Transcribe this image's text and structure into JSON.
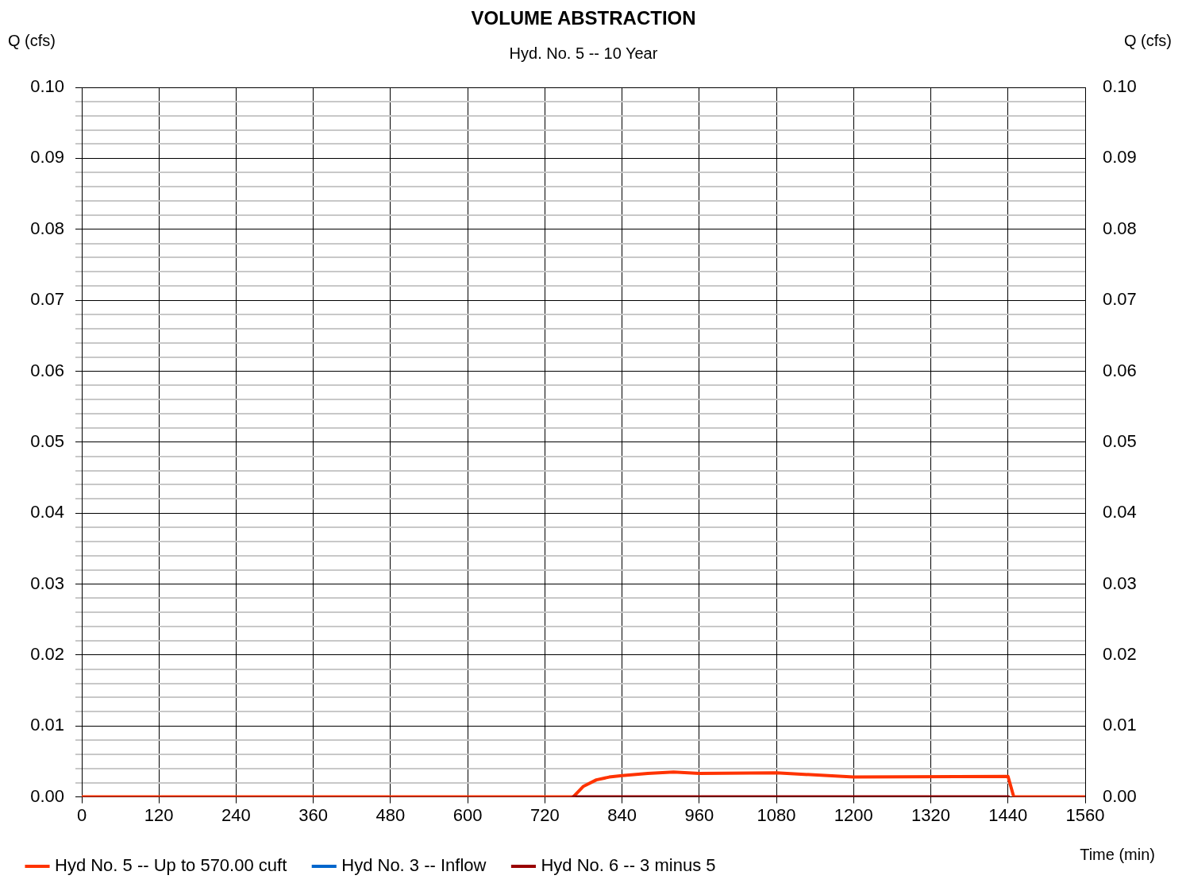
{
  "chart_data": {
    "type": "line",
    "title": "VOLUME ABSTRACTION",
    "subtitle": "Hyd. No. 5 -- 10 Year",
    "xlabel": "Time (min)",
    "ylabel": "Q (cfs)",
    "y2label": "Q (cfs)",
    "xlim": [
      0,
      1560
    ],
    "xticks": [
      0,
      120,
      240,
      360,
      480,
      600,
      720,
      840,
      960,
      1080,
      1200,
      1320,
      1440,
      1560
    ],
    "ylim": [
      0,
      0.1
    ],
    "yticks": [
      {
        "value": 0,
        "label": "0.00"
      },
      {
        "value": 0.002,
        "label": null
      },
      {
        "value": 0.004,
        "label": null
      },
      {
        "value": 0.006,
        "label": null
      },
      {
        "value": 0.008,
        "label": null
      },
      {
        "value": 0.01,
        "label": "0.01"
      },
      {
        "value": 0.012,
        "label": null
      },
      {
        "value": 0.014,
        "label": null
      },
      {
        "value": 0.016,
        "label": null
      },
      {
        "value": 0.018,
        "label": null
      },
      {
        "value": 0.02,
        "label": "0.02"
      },
      {
        "value": 0.022,
        "label": null
      },
      {
        "value": 0.024,
        "label": null
      },
      {
        "value": 0.026,
        "label": null
      },
      {
        "value": 0.028,
        "label": null
      },
      {
        "value": 0.03,
        "label": "0.03"
      },
      {
        "value": 0.032,
        "label": null
      },
      {
        "value": 0.034,
        "label": null
      },
      {
        "value": 0.036,
        "label": null
      },
      {
        "value": 0.038,
        "label": null
      },
      {
        "value": 0.04,
        "label": "0.04"
      },
      {
        "value": 0.042,
        "label": null
      },
      {
        "value": 0.044,
        "label": null
      },
      {
        "value": 0.046,
        "label": null
      },
      {
        "value": 0.048,
        "label": null
      },
      {
        "value": 0.05,
        "label": "0.05"
      },
      {
        "value": 0.052,
        "label": null
      },
      {
        "value": 0.054,
        "label": null
      },
      {
        "value": 0.056,
        "label": null
      },
      {
        "value": 0.058,
        "label": null
      },
      {
        "value": 0.06,
        "label": "0.06"
      },
      {
        "value": 0.062,
        "label": null
      },
      {
        "value": 0.064,
        "label": null
      },
      {
        "value": 0.066,
        "label": null
      },
      {
        "value": 0.068,
        "label": null
      },
      {
        "value": 0.07,
        "label": "0.07"
      },
      {
        "value": 0.072,
        "label": null
      },
      {
        "value": 0.074,
        "label": null
      },
      {
        "value": 0.076,
        "label": null
      },
      {
        "value": 0.078,
        "label": null
      },
      {
        "value": 0.08,
        "label": "0.08"
      },
      {
        "value": 0.082,
        "label": null
      },
      {
        "value": 0.084,
        "label": null
      },
      {
        "value": 0.086,
        "label": null
      },
      {
        "value": 0.088,
        "label": null
      },
      {
        "value": 0.09,
        "label": "0.09"
      },
      {
        "value": 0.092,
        "label": null
      },
      {
        "value": 0.094,
        "label": null
      },
      {
        "value": 0.096,
        "label": null
      },
      {
        "value": 0.098,
        "label": null
      },
      {
        "value": 0.1,
        "label": "0.10"
      }
    ],
    "y2lim": [
      0,
      0.1
    ],
    "y2ticks": [
      {
        "value": 0,
        "label": "0.00"
      },
      {
        "value": 0.01,
        "label": "0.01"
      },
      {
        "value": 0.02,
        "label": "0.02"
      },
      {
        "value": 0.03,
        "label": "0.03"
      },
      {
        "value": 0.04,
        "label": "0.04"
      },
      {
        "value": 0.05,
        "label": "0.05"
      },
      {
        "value": 0.06,
        "label": "0.06"
      },
      {
        "value": 0.07,
        "label": "0.07"
      },
      {
        "value": 0.08,
        "label": "0.08"
      },
      {
        "value": 0.09,
        "label": "0.09"
      },
      {
        "value": 0.1,
        "label": "0.10"
      }
    ],
    "grid": true,
    "legend": "bottom",
    "marker": "none",
    "line_style": "solid",
    "series": [
      {
        "name": "Hyd No. 6 -- 3 minus 5",
        "color": "#990000",
        "x": [
          764,
          1441
        ],
        "values": [
          0,
          0
        ]
      },
      {
        "name": "Hyd No. 3 -- Inflow",
        "color": "#0066cc"
      },
      {
        "name": "Hyd No. 5 -- Up to 570.00 cuft",
        "color": "#ff3300",
        "x": [
          0,
          764,
          780,
          800,
          820,
          840,
          880,
          920,
          960,
          1080,
          1200,
          1440,
          1449,
          1560
        ],
        "values": [
          0,
          0,
          0.0015,
          0.0024,
          0.0028,
          0.003,
          0.0033,
          0.0035,
          0.0033,
          0.0034,
          0.0028,
          0.0029,
          0,
          0
        ]
      }
    ]
  }
}
